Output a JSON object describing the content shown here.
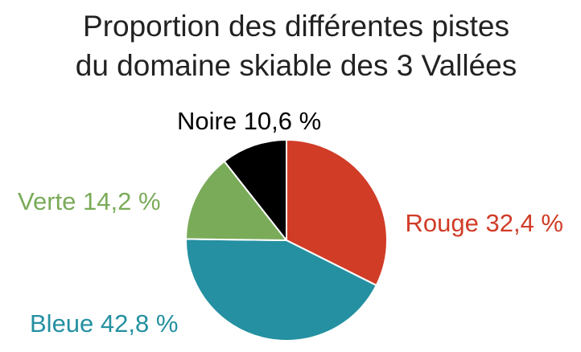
{
  "chart_data": {
    "type": "pie",
    "title": "Proportion des différentes pistes du domaine skiable des 3 Vallées",
    "title_lines": [
      "Proportion des différentes pistes",
      "du domaine skiable des 3 Vallées"
    ],
    "slices": [
      {
        "name": "Rouge",
        "value": 32.4,
        "label": "Rouge 32,4 %",
        "color": "#d13c27"
      },
      {
        "name": "Bleue",
        "value": 42.8,
        "label": "Bleue 42,8 %",
        "color": "#2490a1"
      },
      {
        "name": "Verte",
        "value": 14.2,
        "label": "Verte 14,2 %",
        "color": "#7aab59"
      },
      {
        "name": "Noire",
        "value": 10.6,
        "label": "Noire 10,6 %",
        "color": "#000000"
      }
    ]
  }
}
